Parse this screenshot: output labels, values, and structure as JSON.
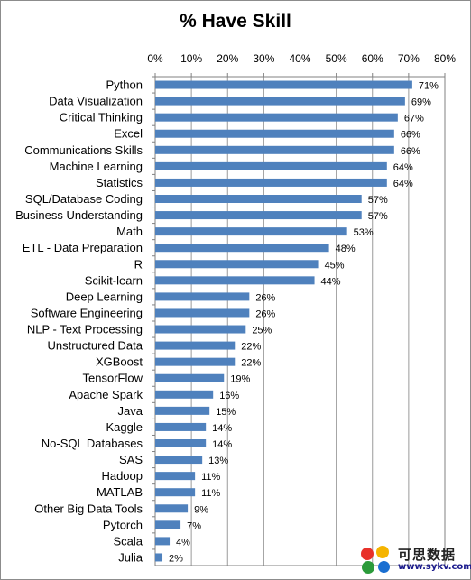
{
  "chart_data": {
    "type": "bar",
    "orientation": "horizontal",
    "title": "% Have Skill",
    "xlabel": "",
    "ylabel": "",
    "xlim": [
      0,
      80
    ],
    "x_ticks": [
      "0%",
      "10%",
      "20%",
      "30%",
      "40%",
      "50%",
      "60%",
      "70%",
      "80%"
    ],
    "x_axis_position": "top",
    "grid": true,
    "legend": "none",
    "bar_color": "#4f81bd",
    "categories": [
      "Python",
      "Data Visualization",
      "Critical Thinking",
      "Excel",
      "Communications Skills",
      "Machine Learning",
      "Statistics",
      "SQL/Database Coding",
      "Business Understanding",
      "Math",
      "ETL - Data Preparation",
      "R",
      "Scikit-learn",
      "Deep Learning",
      "Software Engineering",
      "NLP - Text Processing",
      "Unstructured Data",
      "XGBoost",
      "TensorFlow",
      "Apache Spark",
      "Java",
      "Kaggle",
      "No-SQL Databases",
      "SAS",
      "Hadoop",
      "MATLAB",
      "Other Big Data Tools",
      "Pytorch",
      "Scala",
      "Julia"
    ],
    "values": [
      71,
      69,
      67,
      66,
      66,
      64,
      64,
      57,
      57,
      53,
      48,
      45,
      44,
      26,
      26,
      25,
      22,
      22,
      19,
      16,
      15,
      14,
      14,
      13,
      11,
      11,
      9,
      7,
      4,
      2
    ],
    "data_labels": [
      "71%",
      "69%",
      "67%",
      "66%",
      "66%",
      "64%",
      "64%",
      "57%",
      "57%",
      "53%",
      "48%",
      "45%",
      "44%",
      "26%",
      "26%",
      "25%",
      "22%",
      "22%",
      "19%",
      "16%",
      "15%",
      "14%",
      "14%",
      "13%",
      "11%",
      "11%",
      "9%",
      "7%",
      "4%",
      "2%"
    ]
  },
  "watermark": {
    "text_cn": "可思数据",
    "url": "www.sykv.com",
    "dot_colors": [
      "#e8312a",
      "#f5b400",
      "#2b9b3a",
      "#1a6fd1"
    ]
  }
}
